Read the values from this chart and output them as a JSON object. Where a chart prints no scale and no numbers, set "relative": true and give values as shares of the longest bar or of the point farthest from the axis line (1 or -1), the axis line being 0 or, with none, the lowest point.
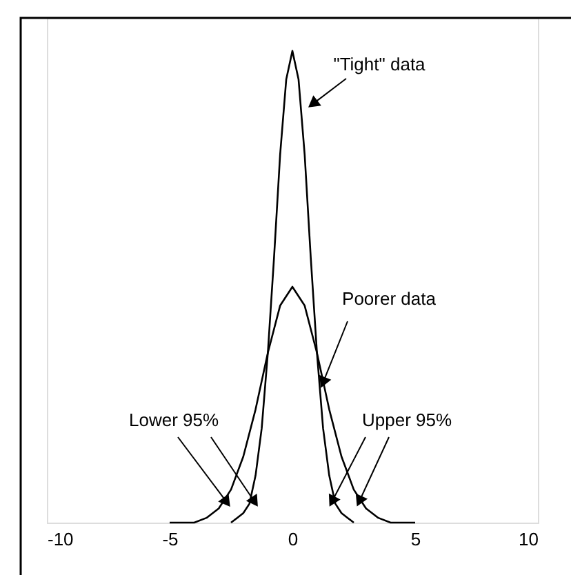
{
  "chart_data": {
    "type": "line",
    "relative": true,
    "xlim": [
      -10,
      10
    ],
    "xticks": [
      -10,
      -5,
      0,
      5,
      10
    ],
    "grid": false,
    "marker": "none",
    "line_style": "solid",
    "series": [
      {
        "color": "#000000",
        "x": [
          -2.5,
          -2.25,
          -2,
          -1.75,
          -1.5,
          -1.25,
          -1,
          -0.75,
          -0.5,
          -0.25,
          0,
          0.25,
          0.5,
          0.75,
          1,
          1.25,
          1.5,
          1.75,
          2,
          2.25,
          2.5
        ],
        "values": [
          0,
          0.01,
          0.02,
          0.04,
          0.1,
          0.2,
          0.36,
          0.56,
          0.78,
          0.94,
          1,
          0.94,
          0.78,
          0.56,
          0.36,
          0.2,
          0.1,
          0.04,
          0.02,
          0.01,
          0
        ]
      },
      {
        "color": "#000000",
        "x": [
          -5,
          -4.5,
          -4,
          -3.5,
          -3,
          -2.5,
          -2,
          -1.5,
          -1,
          -0.5,
          0,
          0.5,
          1,
          1.5,
          2,
          2.5,
          3,
          3.5,
          4,
          4.5,
          5
        ],
        "values": [
          0,
          0,
          0,
          0.01,
          0.03,
          0.07,
          0.14,
          0.24,
          0.36,
          0.46,
          0.5,
          0.46,
          0.36,
          0.24,
          0.14,
          0.07,
          0.03,
          0.01,
          0,
          0,
          0
        ]
      }
    ],
    "annotations": [
      "\"Tight\" data",
      "Poorer data",
      "Lower 95%",
      "Upper 95%"
    ]
  }
}
